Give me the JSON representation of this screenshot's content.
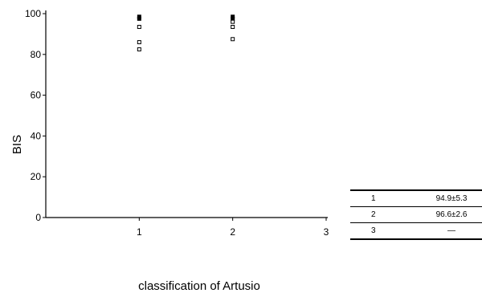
{
  "chart_data": {
    "type": "scatter",
    "xlabel": "classification of Artusio",
    "ylabel": "BIS",
    "xlim": [
      0,
      3
    ],
    "ylim": [
      0,
      100
    ],
    "x_ticks": [
      "1",
      "2",
      "3"
    ],
    "y_ticks": [
      "0",
      "20",
      "40",
      "60",
      "80",
      "100"
    ],
    "grid": false,
    "series": [
      {
        "points": [
          {
            "x": 1,
            "y": 98.5
          },
          {
            "x": 1,
            "y": 97.5
          },
          {
            "x": 1,
            "y": 93.5
          },
          {
            "x": 1,
            "y": 86
          },
          {
            "x": 1,
            "y": 82.5
          },
          {
            "x": 2,
            "y": 98.5
          },
          {
            "x": 2,
            "y": 97.5
          },
          {
            "x": 2,
            "y": 96
          },
          {
            "x": 2,
            "y": 93.5
          },
          {
            "x": 2,
            "y": 87.5
          }
        ]
      }
    ],
    "table": {
      "rows": [
        {
          "group": "1",
          "value": "94.9±5.3"
        },
        {
          "group": "2",
          "value": "96.6±2.6"
        },
        {
          "group": "3",
          "value": "—"
        }
      ]
    }
  }
}
